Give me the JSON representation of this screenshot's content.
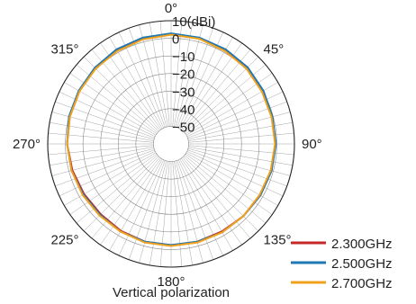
{
  "chart_data": {
    "type": "line",
    "subtype": "polar",
    "title": "",
    "caption": "Vertical polarization",
    "radial_unit_label": "10(dBi)",
    "radial_ticks": [
      "10(dBi)",
      "0",
      "−10",
      "−20",
      "−30",
      "−40",
      "−50"
    ],
    "radial_tick_values": [
      10,
      0,
      -10,
      -20,
      -30,
      -40,
      -50
    ],
    "rlim": [
      -60,
      10
    ],
    "angle_ticks": [
      {
        "angle": 0,
        "label": "0°"
      },
      {
        "angle": 45,
        "label": "45°"
      },
      {
        "angle": 90,
        "label": "90°"
      },
      {
        "angle": 135,
        "label": "135°"
      },
      {
        "angle": 180,
        "label": "180°"
      },
      {
        "angle": 225,
        "label": "225°"
      },
      {
        "angle": 270,
        "label": "270°"
      },
      {
        "angle": 315,
        "label": "315°"
      }
    ],
    "angle_direction": "clockwise",
    "zero_location": "top",
    "grid": true,
    "legend_position": "bottom-right",
    "theta": [
      0,
      15,
      30,
      45,
      60,
      75,
      90,
      105,
      120,
      135,
      150,
      165,
      180,
      195,
      210,
      225,
      240,
      255,
      270,
      285,
      300,
      315,
      330,
      345
    ],
    "series": [
      {
        "name": "2.300GHz",
        "color": "#c62828",
        "values": [
          2.5,
          2.2,
          1.5,
          0.8,
          0,
          -0.5,
          -0.8,
          -1,
          -1.5,
          -2,
          -2.5,
          -2.5,
          -2.5,
          -2.5,
          -3,
          -3.5,
          -3,
          -2,
          -1,
          -0.5,
          0,
          0.8,
          1.5,
          2.2
        ]
      },
      {
        "name": "2.500GHz",
        "color": "#1f77b4",
        "values": [
          2.8,
          2.5,
          2,
          1.5,
          0.5,
          -0.5,
          -0.5,
          -1,
          -1.5,
          -2,
          -2,
          -2.5,
          -2.5,
          -2.5,
          -2.5,
          -3,
          -2.5,
          -1.5,
          -1,
          0,
          0.5,
          1.2,
          2,
          2.5
        ]
      },
      {
        "name": "2.700GHz",
        "color": "#f0a21e",
        "values": [
          2,
          1.8,
          1,
          0.5,
          -0.5,
          -1,
          -1,
          -1.5,
          -2,
          -2,
          -2,
          -2,
          -2,
          -2,
          -2.5,
          -2.5,
          -2,
          -1.5,
          -1,
          -0.5,
          0,
          0.5,
          1,
          1.5
        ]
      }
    ]
  }
}
